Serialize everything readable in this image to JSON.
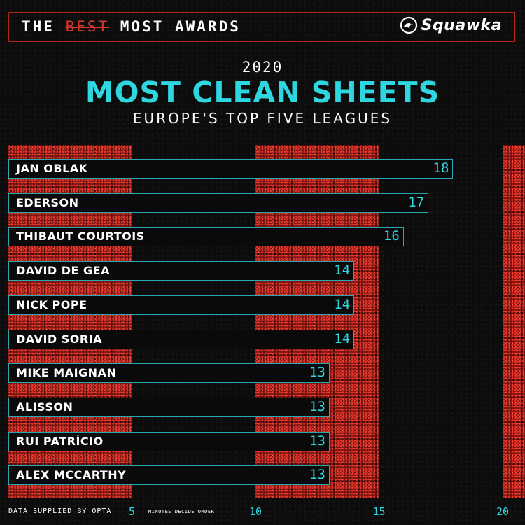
{
  "header": {
    "prefix": "THE ",
    "strike": "BEST",
    "suffix": " MOST AWARDS",
    "brand": "Squawka"
  },
  "year": "2020",
  "title": "MOST CLEAN SHEETS",
  "subtitle": "EUROPE'S TOP FIVE LEAGUES",
  "footer": {
    "source": "DATA SUPPLIED BY OPTA",
    "note": "MINUTES DECIDE ORDER"
  },
  "colors": {
    "accent": "#2ed6e0",
    "red": "#b3231b",
    "background": "#0c0c0c"
  },
  "chart_data": {
    "type": "bar",
    "orientation": "horizontal",
    "title": "MOST CLEAN SHEETS",
    "subtitle": "EUROPE'S TOP FIVE LEAGUES",
    "categories": [
      "JAN OBLAK",
      "EDERSON",
      "THIBAUT COURTOIS",
      "DAVID DE GEA",
      "NICK POPE",
      "DAVID SORIA",
      "MIKE MAIGNAN",
      "ALISSON",
      "RUI PATRÍCIO",
      "ALEX MCCARTHY"
    ],
    "values": [
      18,
      17,
      16,
      14,
      14,
      14,
      13,
      13,
      13,
      13
    ],
    "x_ticks": [
      "5",
      "10",
      "15",
      "20"
    ],
    "xlim": [
      0,
      20
    ],
    "grid": false,
    "legend": "none"
  }
}
